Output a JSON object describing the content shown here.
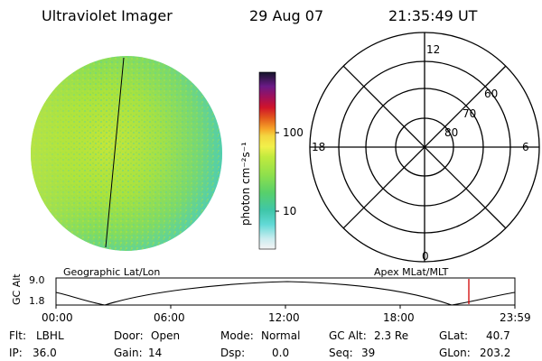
{
  "header": {
    "instrument": "Ultraviolet Imager",
    "date": "29 Aug 07",
    "time": "21:35:49 UT"
  },
  "colorbar": {
    "unit_label": "photon cm⁻²s⁻¹",
    "ticks": [
      "100",
      "10"
    ]
  },
  "polar": {
    "mlt_labels": [
      "12",
      "18",
      "6",
      "0"
    ],
    "lat_labels": [
      "60",
      "70",
      "80"
    ]
  },
  "orbit": {
    "left_title": "Geographic Lat/Lon",
    "right_title": "Apex MLat/MLT",
    "axis_label": "GC Alt",
    "y_ticks": [
      "9.0",
      "1.8"
    ],
    "time_ticks": [
      "00:00",
      "06:00",
      "12:00",
      "18:00",
      "23:59"
    ],
    "current_time_fraction": 0.9
  },
  "info": {
    "flt_label": "Flt:",
    "flt_value": "LBHL",
    "ip_label": "IP:",
    "ip_value": "36.0",
    "door_label": "Door:",
    "door_value": "Open",
    "gain_label": "Gain:",
    "gain_value": "14",
    "mode_label": "Mode:",
    "mode_value": "Normal",
    "dsp_label": "Dsp:",
    "dsp_value": "0.0",
    "gcalt_label": "GC Alt:",
    "gcalt_value": "2.3 Re",
    "seq_label": "Seq:",
    "seq_value": "39",
    "glat_label": "GLat:",
    "glat_value": "40.7",
    "glon_label": "GLon:",
    "glon_value": "203.2"
  },
  "colors": {
    "marker": "#d10000",
    "disk_main": "#a6e33a",
    "disk_edge": "#5fd0a0"
  }
}
